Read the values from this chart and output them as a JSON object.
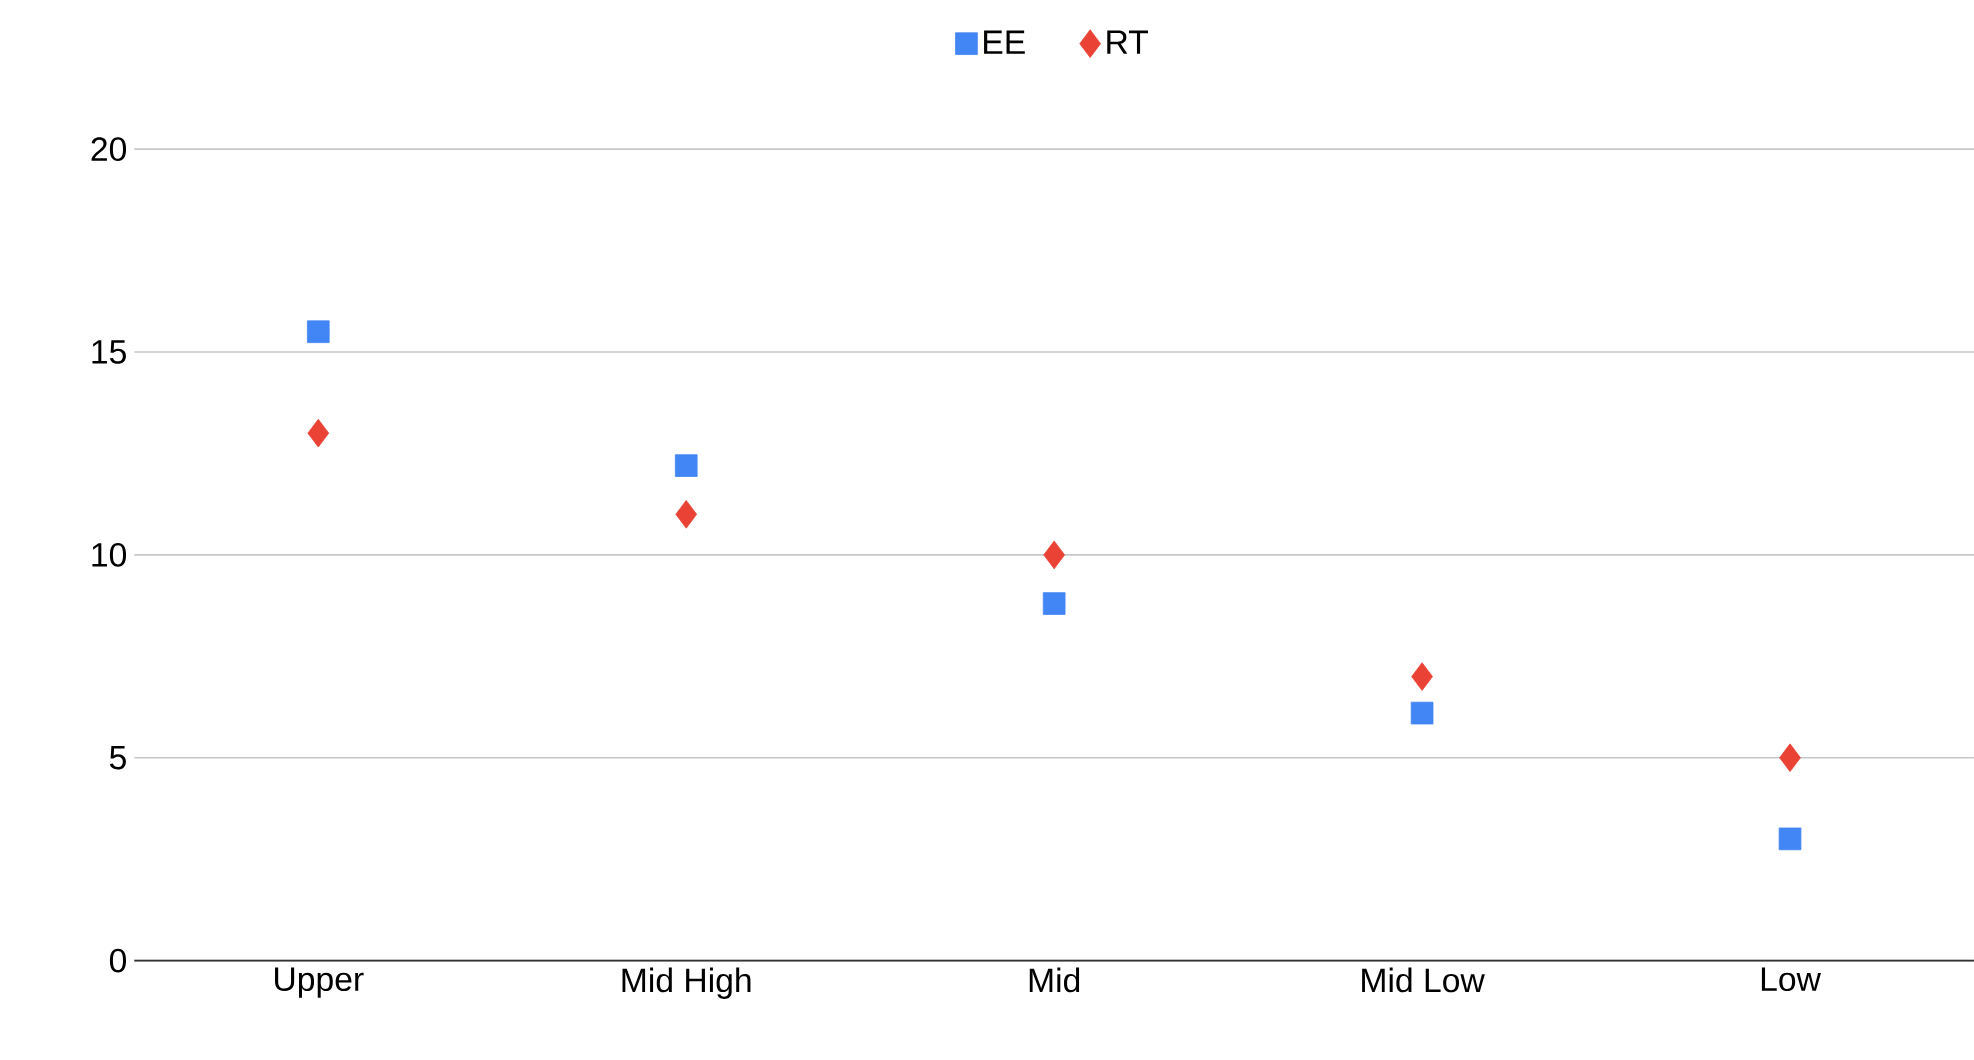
{
  "chart_data": {
    "type": "scatter",
    "categories": [
      "Upper",
      "Mid High",
      "Mid",
      "Mid Low",
      "Low"
    ],
    "series": [
      {
        "name": "EE",
        "color": "#4285f4",
        "marker": "square",
        "values": [
          15.5,
          12.2,
          8.8,
          6.1,
          3
        ]
      },
      {
        "name": "RT",
        "color": "#ea4335",
        "marker": "diamond",
        "values": [
          13,
          11,
          10,
          7,
          5
        ]
      }
    ],
    "ylim": [
      0,
      20
    ],
    "yticks": [
      0,
      5,
      10,
      15,
      20
    ],
    "grid": "y",
    "legend": "top"
  }
}
